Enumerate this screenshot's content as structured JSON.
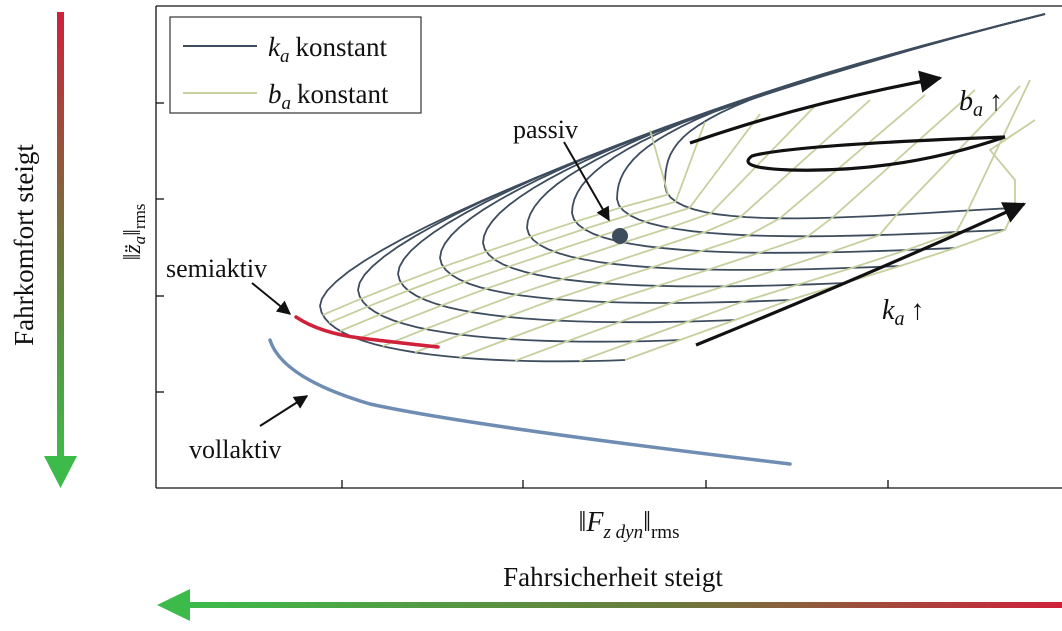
{
  "chart_data": {
    "type": "line",
    "title": "",
    "xlabel": {
      "base": "F",
      "sub": "z dyn",
      "norm_sub": "rms"
    },
    "ylabel": {
      "base": "z̈",
      "sub": "a",
      "norm_sub": "rms"
    },
    "grid": false,
    "ticks": "unlabeled",
    "legend": {
      "placement": "top-left",
      "entries": [
        {
          "base": "k",
          "sub": "a",
          "text": "konstant",
          "color": "#3d4d5e"
        },
        {
          "base": "b",
          "sub": "a",
          "text": "konstant",
          "color": "#c6cf9e"
        }
      ]
    },
    "annotations": {
      "passiv": "passiv",
      "semiaktiv": "semiaktiv",
      "vollaktiv": "vollaktiv",
      "b_up": {
        "base": "b",
        "sub": "a",
        "arrow": "↑"
      },
      "k_up": {
        "base": "k",
        "sub": "a",
        "arrow": "↑"
      }
    },
    "side_labels": {
      "left": "Fahrkomfort steigt",
      "bottom": "Fahrsicherheit steigt"
    },
    "colors": {
      "k_const": "#3d4d5e",
      "b_const": "#c6cf9e",
      "semiaktiv": "#d0213b",
      "vollaktiv": "#6f8db3",
      "arrow_green": "#3dbb4a",
      "arrow_red": "#d0213b"
    }
  }
}
